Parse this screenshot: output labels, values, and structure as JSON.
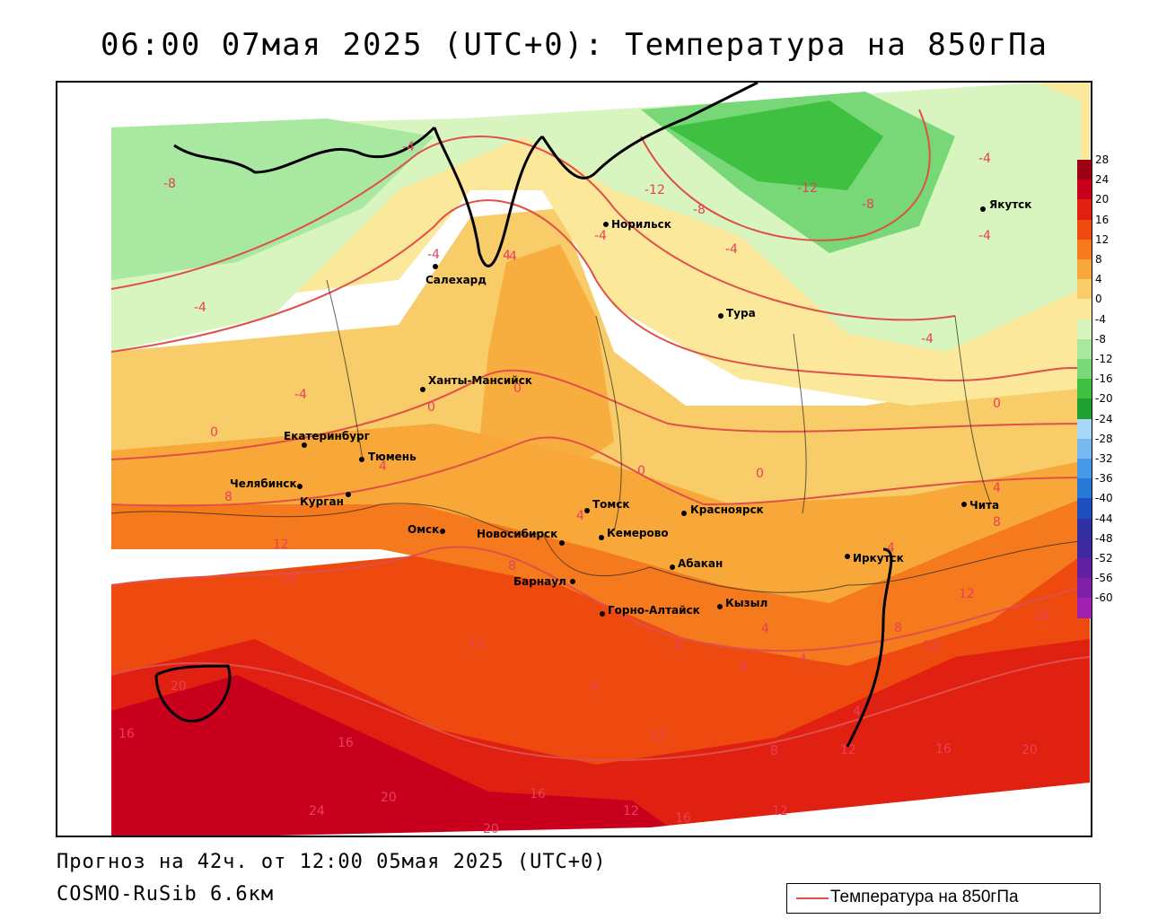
{
  "title": "06:00 07мая 2025 (UTC+0): Температура на 850гПа",
  "footer": {
    "forecast": "Прогноз на 42ч. от 12:00 05мая 2025 (UTC+0)",
    "model": "COSMO-RuSib 6.6км"
  },
  "legend": {
    "label": "Температура на 850гПа",
    "line_color": "#e0504a"
  },
  "colorbar": {
    "levels": [
      "28",
      "24",
      "20",
      "16",
      "12",
      "8",
      "4",
      "0",
      "-4",
      "-8",
      "-12",
      "-16",
      "-20",
      "-24",
      "-28",
      "-32",
      "-36",
      "-40",
      "-44",
      "-48",
      "-52",
      "-56",
      "-60"
    ],
    "colors": [
      "#9c0014",
      "#c8001e",
      "#e02010",
      "#ee4a10",
      "#f57a1e",
      "#f8a838",
      "#f8cc68",
      "#fbe89a",
      "#d8f5c0",
      "#a8e8a0",
      "#78d878",
      "#40c040",
      "#20a030",
      "#a8d8f8",
      "#78b8f0",
      "#4898e8",
      "#2878d8",
      "#2050c0",
      "#3030a0",
      "#4028a0",
      "#6020a0",
      "#8020a8",
      "#a020b0"
    ]
  },
  "cities": [
    {
      "name": "Салехард"
    },
    {
      "name": "Норильск"
    },
    {
      "name": "Якутск"
    },
    {
      "name": "Тура"
    },
    {
      "name": "Ханты-Мансийск"
    },
    {
      "name": "Екатеринбург"
    },
    {
      "name": "Тюмень"
    },
    {
      "name": "Челябинск"
    },
    {
      "name": "Курган"
    },
    {
      "name": "Омск"
    },
    {
      "name": "Новосибирск"
    },
    {
      "name": "Томск"
    },
    {
      "name": "Кемерово"
    },
    {
      "name": "Красноярск"
    },
    {
      "name": "Абакан"
    },
    {
      "name": "Барнаул"
    },
    {
      "name": "Горно-Алтайск"
    },
    {
      "name": "Кызыл"
    },
    {
      "name": "Иркутск"
    },
    {
      "name": "Чита"
    }
  ],
  "contour_labels": [
    "-8",
    "-4",
    "-4",
    "-4",
    "-4",
    "-12",
    "-8",
    "-12",
    "-8",
    "-4",
    "-4",
    "-4",
    "-4",
    "-4",
    "-4",
    "0",
    "0",
    "0",
    "0",
    "0",
    "0",
    "4",
    "4",
    "4",
    "4",
    "4",
    "4",
    "4",
    "4",
    "4",
    "8",
    "8",
    "8",
    "8",
    "8",
    "8",
    "8",
    "12",
    "12",
    "12",
    "12",
    "12",
    "12",
    "12",
    "12",
    "16",
    "16",
    "16",
    "16",
    "16",
    "16",
    "16",
    "20",
    "20",
    "20",
    "20",
    "24"
  ]
}
